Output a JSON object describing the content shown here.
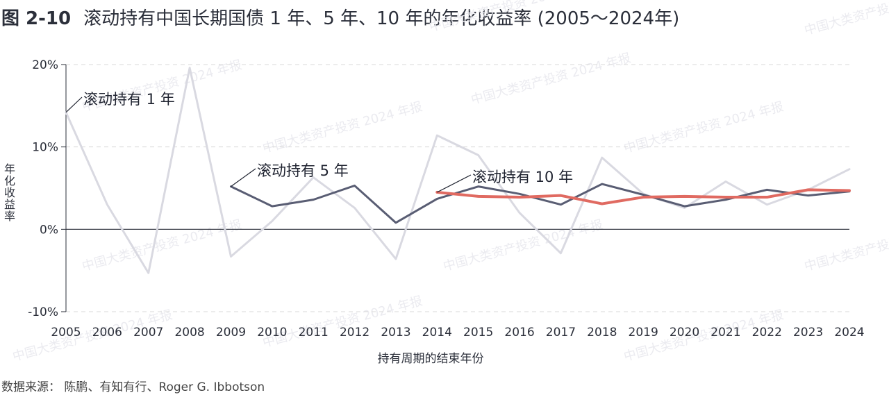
{
  "figure_number": "图 2-10",
  "title": "滚动持有中国长期国债 1 年、5 年、10 年的年化收益率 (2005～2024年)",
  "source": "数据来源：  陈鹏、有知有行、Roger G. Ibbotson",
  "watermark": "中国大类资产投资 2024 年报",
  "chart_data": {
    "type": "line",
    "x": [
      "2005",
      "2006",
      "2007",
      "2008",
      "2009",
      "2010",
      "2011",
      "2012",
      "2013",
      "2014",
      "2015",
      "2016",
      "2017",
      "2018",
      "2019",
      "2020",
      "2021",
      "2022",
      "2023",
      "2024"
    ],
    "xlabel": "持有周期的结束年份",
    "ylabel": "年化收益率",
    "ylim": [
      -10,
      20
    ],
    "yticks": [
      20,
      10,
      0,
      -10
    ],
    "ytick_labels": [
      "20%",
      "10%",
      "0%",
      "-10%"
    ],
    "grid": "horizontal dashed",
    "series": [
      {
        "name": "滚动持有 1 年",
        "color": "#d9d9e1",
        "values": [
          14.2,
          3.0,
          -5.3,
          19.6,
          -3.3,
          1.0,
          6.3,
          2.6,
          -3.6,
          11.4,
          9.0,
          2.0,
          -2.9,
          8.7,
          4.3,
          2.6,
          5.8,
          3.0,
          4.8,
          7.3
        ]
      },
      {
        "name": "滚动持有 5 年",
        "color": "#595d73",
        "values": [
          null,
          null,
          null,
          null,
          5.2,
          2.8,
          3.6,
          5.3,
          0.8,
          3.7,
          5.2,
          4.3,
          3.0,
          5.5,
          4.2,
          2.8,
          3.6,
          4.8,
          4.1,
          4.6
        ]
      },
      {
        "name": "滚动持有 10 年",
        "color": "#e06a61",
        "values": [
          null,
          null,
          null,
          null,
          null,
          null,
          null,
          null,
          null,
          4.5,
          4.0,
          3.9,
          4.1,
          3.1,
          3.9,
          4.0,
          3.9,
          3.9,
          4.8,
          4.7
        ]
      }
    ]
  }
}
